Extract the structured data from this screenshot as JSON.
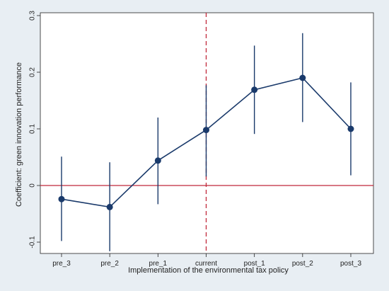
{
  "chart_data": {
    "type": "line",
    "title": "",
    "xlabel": "Implementation of the environmental tax policy",
    "ylabel": "Coefficient: green innovation performance",
    "categories": [
      "pre_3",
      "pre_2",
      "pre_1",
      "current",
      "post_1",
      "post_2",
      "post_3"
    ],
    "ylim": [
      -0.12,
      0.305
    ],
    "yticks": [
      -0.1,
      0,
      0.1,
      0.2,
      0.3
    ],
    "ytick_labels": [
      "-0.1",
      "0",
      "0.1",
      "0.2",
      "0.3"
    ],
    "series": [
      {
        "values": [
          -0.024,
          -0.038,
          0.044,
          0.098,
          0.169,
          0.19,
          0.1
        ],
        "ci_low": [
          -0.098,
          -0.116,
          -0.033,
          0.016,
          0.091,
          0.112,
          0.018
        ],
        "ci_high": [
          0.051,
          0.041,
          0.12,
          0.177,
          0.247,
          0.269,
          0.182
        ]
      }
    ],
    "reference_lines": {
      "horizontal_y": 0,
      "vertical_at_category": "current"
    },
    "grid": false,
    "colors": {
      "series": "#1a3a6b",
      "marker": "#1a3a6b",
      "reference": "#c0283a",
      "plot_background": "#ffffff",
      "figure_background": "#e8eef3"
    }
  }
}
